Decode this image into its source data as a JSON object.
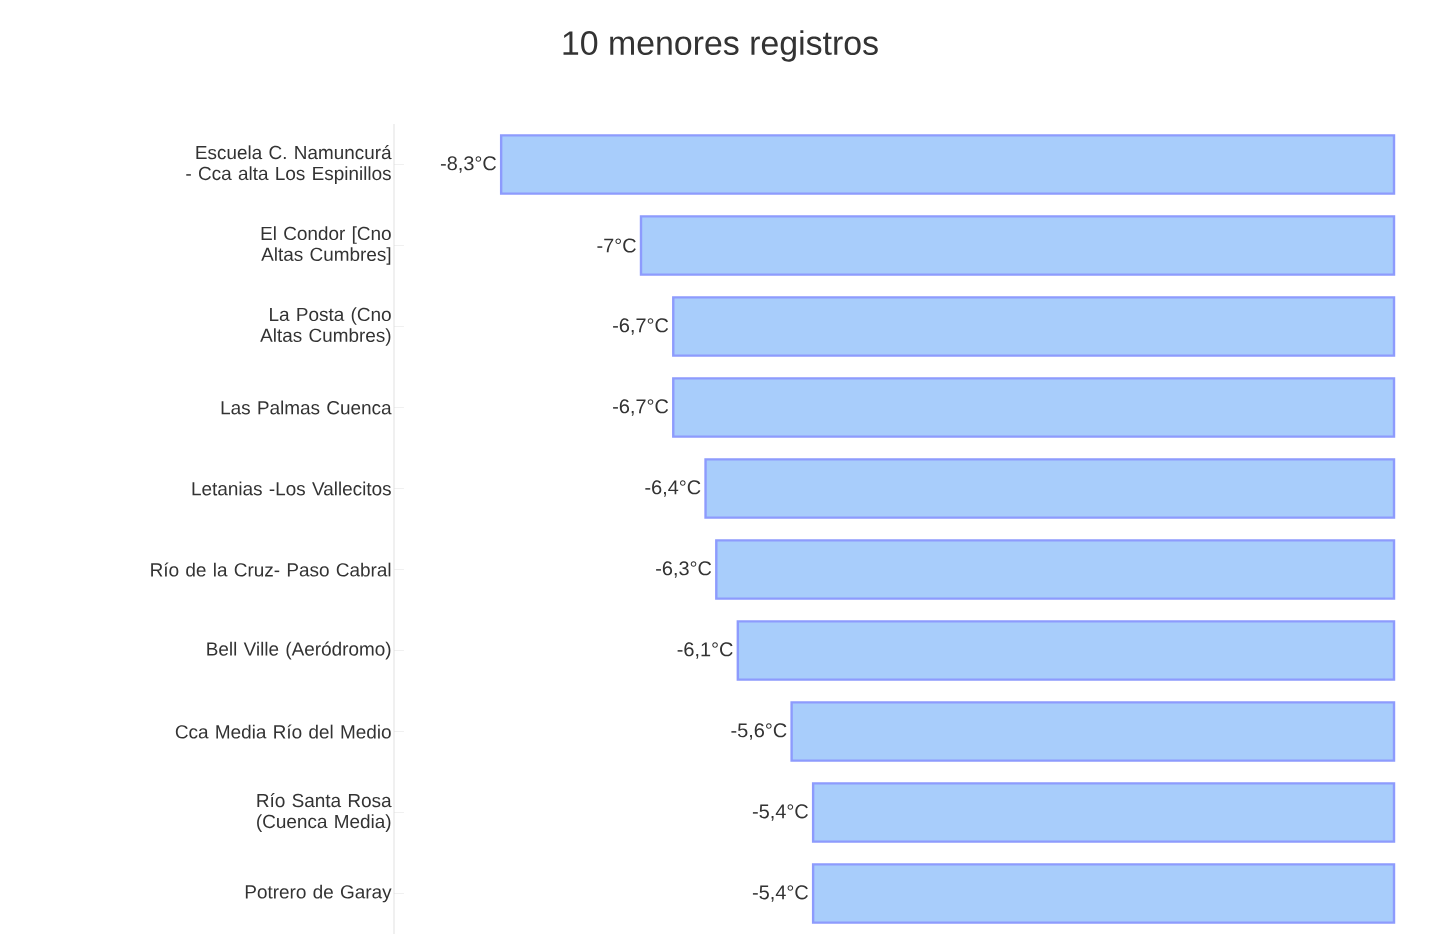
{
  "chart_data": {
    "type": "bar",
    "orientation": "horizontal",
    "title": "10 menores registros",
    "categories": [
      "Escuela C. Namuncurá - Cca alta Los Espinillos",
      "El Condor [Cno Altas Cumbres]",
      "La Posta (Cno Altas Cumbres)",
      "Las Palmas Cuenca",
      "Letanias -Los Vallecitos",
      "Río de la Cruz- Paso Cabral",
      "Bell Ville (Aeródromo)",
      "Cca Media Río del Medio",
      "Río Santa Rosa (Cuenca Media)",
      "Potrero de Garay"
    ],
    "values": [
      -8.3,
      -7,
      -6.7,
      -6.7,
      -6.4,
      -6.3,
      -6.1,
      -5.6,
      -5.4,
      -5.4
    ],
    "value_labels": [
      "-8,3°C",
      "-7°C",
      "-6,7°C",
      "-6,7°C",
      "-6,4°C",
      "-6,3°C",
      "-6,1°C",
      "-5,6°C",
      "-5,4°C",
      "-5,4°C"
    ],
    "color": "#a8cdfb",
    "tick_labels": "y"
  }
}
